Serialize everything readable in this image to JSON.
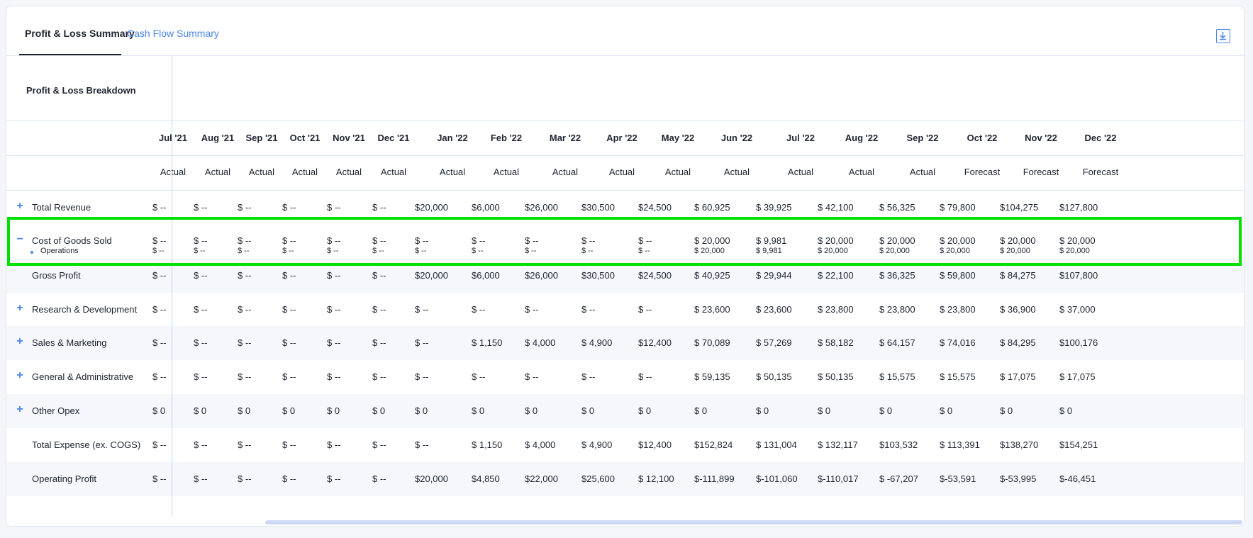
{
  "tabs": [
    {
      "label": "Profit & Loss Summary",
      "active": true
    },
    {
      "label": "Cash Flow Summary",
      "active": false
    }
  ],
  "section_title": "Profit & Loss Breakdown",
  "icons": {
    "download": "download-icon",
    "expand": "plus-icon",
    "collapse": "minus-icon",
    "bullet": "bullet-icon"
  },
  "colors": {
    "accent": "#4a86e8",
    "highlight": "#00e000",
    "scrollbar": "#cdd8f3"
  },
  "columns": [
    {
      "month": "Jul '21",
      "status": "Actual"
    },
    {
      "month": "Aug '21",
      "status": "Actual"
    },
    {
      "month": "Sep '21",
      "status": "Actual"
    },
    {
      "month": "Oct '21",
      "status": "Actual"
    },
    {
      "month": "Nov '21",
      "status": "Actual"
    },
    {
      "month": "Dec '21",
      "status": "Actual"
    },
    {
      "month": "Jan '22",
      "status": "Actual"
    },
    {
      "month": "Feb '22",
      "status": "Actual"
    },
    {
      "month": "Mar '22",
      "status": "Actual"
    },
    {
      "month": "Apr '22",
      "status": "Actual"
    },
    {
      "month": "May '22",
      "status": "Actual"
    },
    {
      "month": "Jun '22",
      "status": "Actual"
    },
    {
      "month": "Jul '22",
      "status": "Actual"
    },
    {
      "month": "Aug '22",
      "status": "Actual"
    },
    {
      "month": "Sep '22",
      "status": "Actual"
    },
    {
      "month": "Oct '22",
      "status": "Forecast"
    },
    {
      "month": "Nov '22",
      "status": "Forecast"
    },
    {
      "month": "Dec '22",
      "status": "Forecast"
    }
  ],
  "rows": [
    {
      "label": "Total Revenue",
      "toggle": "+",
      "cells": [
        "$ --",
        "$ --",
        "$ --",
        "$ --",
        "$ --",
        "$ --",
        "$20,000",
        "$6,000",
        "$26,000",
        "$30,500",
        "$24,500",
        "$ 60,925",
        "$ 39,925",
        "$ 42,100",
        "$ 56,325",
        "$ 79,800",
        "$104,275",
        "$127,800"
      ]
    },
    {
      "label": "Cost of Goods Sold",
      "toggle": "−",
      "cells": [
        "$ --",
        "$ --",
        "$ --",
        "$ --",
        "$ --",
        "$ --",
        "$ --",
        "$ --",
        "$ --",
        "$ --",
        "$ --",
        "$ 20,000",
        "$ 9,981",
        "$ 20,000",
        "$ 20,000",
        "$ 20,000",
        "$ 20,000",
        "$ 20,000"
      ]
    },
    {
      "label": "Operations",
      "toggle": "",
      "sub": true,
      "cells": [
        "$ --",
        "$ --",
        "$ --",
        "$ --",
        "$ --",
        "$ --",
        "$ --",
        "$ --",
        "$ --",
        "$ --",
        "$ --",
        "$ 20,000",
        "$ 9,981",
        "$ 20,000",
        "$ 20,000",
        "$ 20,000",
        "$ 20,000",
        "$ 20,000"
      ]
    },
    {
      "label": "Gross Profit",
      "toggle": "",
      "cells": [
        "$ --",
        "$ --",
        "$ --",
        "$ --",
        "$ --",
        "$ --",
        "$20,000",
        "$6,000",
        "$26,000",
        "$30,500",
        "$24,500",
        "$ 40,925",
        "$ 29,944",
        "$ 22,100",
        "$ 36,325",
        "$ 59,800",
        "$ 84,275",
        "$107,800"
      ]
    },
    {
      "label": "Research & Development",
      "toggle": "+",
      "cells": [
        "$ --",
        "$ --",
        "$ --",
        "$ --",
        "$ --",
        "$ --",
        "$ --",
        "$ --",
        "$ --",
        "$ --",
        "$ --",
        "$ 23,600",
        "$ 23,600",
        "$ 23,800",
        "$ 23,800",
        "$ 23,800",
        "$ 36,900",
        "$ 37,000"
      ]
    },
    {
      "label": "Sales & Marketing",
      "toggle": "+",
      "cells": [
        "$ --",
        "$ --",
        "$ --",
        "$ --",
        "$ --",
        "$ --",
        "$ --",
        "$ 1,150",
        "$ 4,000",
        "$ 4,900",
        "$12,400",
        "$ 70,089",
        "$ 57,269",
        "$ 58,182",
        "$ 64,157",
        "$ 74,016",
        "$ 84,295",
        "$100,176"
      ]
    },
    {
      "label": "General & Administrative",
      "toggle": "+",
      "cells": [
        "$ --",
        "$ --",
        "$ --",
        "$ --",
        "$ --",
        "$ --",
        "$ --",
        "$ --",
        "$ --",
        "$ --",
        "$ --",
        "$ 59,135",
        "$ 50,135",
        "$ 50,135",
        "$ 15,575",
        "$ 15,575",
        "$ 17,075",
        "$ 17,075"
      ]
    },
    {
      "label": "Other Opex",
      "toggle": "+",
      "cells": [
        "$ 0",
        "$ 0",
        "$ 0",
        "$ 0",
        "$ 0",
        "$ 0",
        "$ 0",
        "$ 0",
        "$ 0",
        "$ 0",
        "$ 0",
        "$ 0",
        "$ 0",
        "$ 0",
        "$ 0",
        "$ 0",
        "$ 0",
        "$ 0"
      ]
    },
    {
      "label": "Total Expense (ex. COGS)",
      "toggle": "",
      "cells": [
        "$ --",
        "$ --",
        "$ --",
        "$ --",
        "$ --",
        "$ --",
        "$ --",
        "$ 1,150",
        "$ 4,000",
        "$ 4,900",
        "$12,400",
        "$152,824",
        "$ 131,004",
        "$ 132,117",
        "$103,532",
        "$ 113,391",
        "$138,270",
        "$154,251"
      ]
    },
    {
      "label": "Operating Profit",
      "toggle": "",
      "cells": [
        "$ --",
        "$ --",
        "$ --",
        "$ --",
        "$ --",
        "$ --",
        "$20,000",
        "$4,850",
        "$22,000",
        "$25,600",
        "$ 12,100",
        "$-111,899",
        "$-101,060",
        "$-110,017",
        "$ -67,207",
        "$-53,591",
        "$-53,995",
        "$-46,451"
      ]
    }
  ]
}
